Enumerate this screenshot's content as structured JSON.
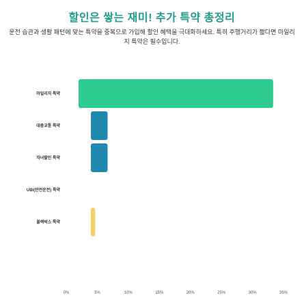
{
  "title": "할인은 쌓는 재미! 추가 특약 총정리",
  "description": "운전 습관과 생활 패턴에 맞는 특약을 중복으로 가입해 할인 혜택을 극대화하세요. 특히 주행거리가 짧다면 마일리지 특약은 필수입니다.",
  "chart_data": {
    "type": "bar",
    "orientation": "horizontal",
    "unit": "%",
    "categories": [
      "마일리지 특약",
      "대중교통 특약",
      "자녀할인 특약",
      "UBI(안전운전) 특약",
      "블랙박스 특약"
    ],
    "values": [
      33,
      6,
      6,
      0,
      4
    ],
    "colors": [
      "#2ecc8f",
      "#1f8aad",
      "#1f8aad",
      "#1f8aad",
      "#f5cf66"
    ],
    "xlim": [
      0,
      35
    ],
    "xticks": [
      "0%",
      "5%",
      "10%",
      "15%",
      "20%",
      "25%",
      "30%",
      "35%"
    ],
    "grid": false,
    "legend": "none"
  }
}
